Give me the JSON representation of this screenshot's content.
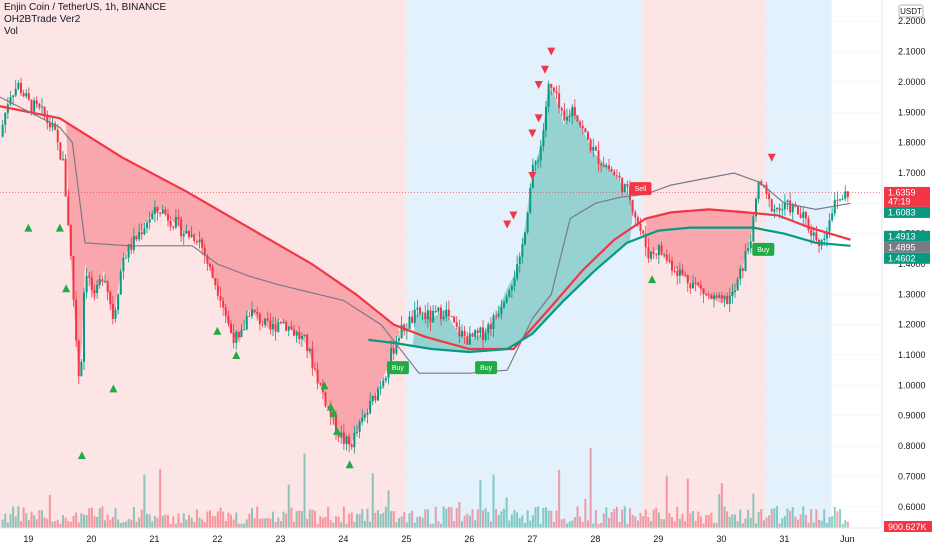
{
  "legend": {
    "symbol_line": "Enjin Coin / TetherUS, 1h, BINANCE",
    "indicator": "OH2BTrade Ver2",
    "volume": "Vol"
  },
  "currency": "USDT",
  "chart_data": {
    "type": "candlestick",
    "x_ticks": [
      "19",
      "20",
      "21",
      "22",
      "23",
      "24",
      "25",
      "26",
      "27",
      "28",
      "29",
      "30",
      "31",
      "Jun"
    ],
    "y_ticks": [
      2.2,
      2.1,
      2.0,
      1.9,
      1.8,
      1.7,
      1.6,
      1.5,
      1.4,
      1.3,
      1.2,
      1.1,
      1.0,
      0.9,
      0.8,
      0.7,
      0.6
    ],
    "y_tick_labels": [
      "2.2000",
      "2.1000",
      "2.0000",
      "1.9000",
      "1.8000",
      "1.7000",
      "1.6000",
      "1.5000",
      "1.4000",
      "1.3000",
      "1.2000",
      "1.1000",
      "1.0000",
      "0.9000",
      "0.8000",
      "0.7000",
      "0.6000"
    ],
    "ylim": [
      0.53,
      2.27
    ],
    "x_range_days": [
      18.55,
      32.55
    ],
    "price_path": [
      [
        18.55,
        1.82
      ],
      [
        18.7,
        1.96
      ],
      [
        18.85,
        1.99
      ],
      [
        19.0,
        1.93
      ],
      [
        19.2,
        1.9
      ],
      [
        19.4,
        1.84
      ],
      [
        19.55,
        1.73
      ],
      [
        19.65,
        1.5
      ],
      [
        19.75,
        1.18
      ],
      [
        19.82,
        0.98
      ],
      [
        19.9,
        1.4
      ],
      [
        20.05,
        1.28
      ],
      [
        20.2,
        1.38
      ],
      [
        20.35,
        1.22
      ],
      [
        20.5,
        1.42
      ],
      [
        20.7,
        1.48
      ],
      [
        20.9,
        1.55
      ],
      [
        21.1,
        1.58
      ],
      [
        21.3,
        1.54
      ],
      [
        21.5,
        1.5
      ],
      [
        21.7,
        1.49
      ],
      [
        21.9,
        1.37
      ],
      [
        22.05,
        1.3
      ],
      [
        22.2,
        1.18
      ],
      [
        22.35,
        1.14
      ],
      [
        22.5,
        1.25
      ],
      [
        22.7,
        1.21
      ],
      [
        22.85,
        1.18
      ],
      [
        23.0,
        1.22
      ],
      [
        23.2,
        1.18
      ],
      [
        23.4,
        1.14
      ],
      [
        23.55,
        1.05
      ],
      [
        23.7,
        0.96
      ],
      [
        23.85,
        0.87
      ],
      [
        24.0,
        0.82
      ],
      [
        24.1,
        0.8
      ],
      [
        24.25,
        0.86
      ],
      [
        24.4,
        0.92
      ],
      [
        24.55,
        0.99
      ],
      [
        24.7,
        1.06
      ],
      [
        24.85,
        1.16
      ],
      [
        25.0,
        1.2
      ],
      [
        25.2,
        1.24
      ],
      [
        25.4,
        1.22
      ],
      [
        25.6,
        1.25
      ],
      [
        25.8,
        1.18
      ],
      [
        26.0,
        1.15
      ],
      [
        26.2,
        1.17
      ],
      [
        26.4,
        1.22
      ],
      [
        26.6,
        1.32
      ],
      [
        26.8,
        1.4
      ],
      [
        26.9,
        1.55
      ],
      [
        27.0,
        1.7
      ],
      [
        27.15,
        1.8
      ],
      [
        27.25,
        1.98
      ],
      [
        27.35,
        1.96
      ],
      [
        27.5,
        1.86
      ],
      [
        27.65,
        1.92
      ],
      [
        27.8,
        1.84
      ],
      [
        28.0,
        1.76
      ],
      [
        28.2,
        1.72
      ],
      [
        28.4,
        1.67
      ],
      [
        28.55,
        1.62
      ],
      [
        28.7,
        1.52
      ],
      [
        28.85,
        1.43
      ],
      [
        29.0,
        1.45
      ],
      [
        29.2,
        1.4
      ],
      [
        29.4,
        1.36
      ],
      [
        29.6,
        1.33
      ],
      [
        29.8,
        1.29
      ],
      [
        30.0,
        1.27
      ],
      [
        30.2,
        1.3
      ],
      [
        30.35,
        1.4
      ],
      [
        30.5,
        1.52
      ],
      [
        30.6,
        1.68
      ],
      [
        30.75,
        1.6
      ],
      [
        30.9,
        1.58
      ],
      [
        31.1,
        1.59
      ],
      [
        31.3,
        1.55
      ],
      [
        31.45,
        1.5
      ],
      [
        31.6,
        1.47
      ],
      [
        31.75,
        1.58
      ],
      [
        31.9,
        1.62
      ],
      [
        32.05,
        1.64
      ]
    ],
    "overlays": [
      {
        "name": "",
        "color": "#f23645",
        "values": [
          [
            18.55,
            1.92
          ],
          [
            19.5,
            1.88
          ],
          [
            20.5,
            1.75
          ],
          [
            21.5,
            1.64
          ],
          [
            22.5,
            1.52
          ],
          [
            23.5,
            1.4
          ],
          [
            24.2,
            1.3
          ],
          [
            24.8,
            1.2
          ],
          [
            25.3,
            1.16
          ],
          [
            26.0,
            1.12
          ],
          [
            26.7,
            1.12
          ],
          [
            27.3,
            1.26
          ],
          [
            27.8,
            1.38
          ],
          [
            28.3,
            1.48
          ],
          [
            28.8,
            1.55
          ],
          [
            29.2,
            1.57
          ],
          [
            29.8,
            1.58
          ],
          [
            30.4,
            1.57
          ],
          [
            30.9,
            1.56
          ],
          [
            31.4,
            1.52
          ],
          [
            32.05,
            1.48
          ]
        ]
      },
      {
        "name": "",
        "color": "#089981",
        "values": [
          [
            24.4,
            1.15
          ],
          [
            24.8,
            1.14
          ],
          [
            25.4,
            1.12
          ],
          [
            26.0,
            1.11
          ],
          [
            26.6,
            1.12
          ],
          [
            27.0,
            1.17
          ],
          [
            27.5,
            1.28
          ],
          [
            28.0,
            1.38
          ],
          [
            28.5,
            1.47
          ],
          [
            29.0,
            1.51
          ],
          [
            29.5,
            1.52
          ],
          [
            30.0,
            1.52
          ],
          [
            30.5,
            1.52
          ],
          [
            31.0,
            1.5
          ],
          [
            31.5,
            1.47
          ],
          [
            32.05,
            1.46
          ]
        ]
      },
      {
        "name": "",
        "color": "#787b86",
        "values": [
          [
            18.55,
            1.95
          ],
          [
            19.5,
            1.85
          ],
          [
            19.7,
            1.8
          ],
          [
            19.9,
            1.47
          ],
          [
            20.6,
            1.46
          ],
          [
            21.2,
            1.46
          ],
          [
            21.6,
            1.46
          ],
          [
            22.0,
            1.4
          ],
          [
            22.5,
            1.36
          ],
          [
            23.0,
            1.33
          ],
          [
            23.6,
            1.3
          ],
          [
            24.0,
            1.28
          ],
          [
            24.6,
            1.2
          ],
          [
            25.2,
            1.04
          ],
          [
            26.0,
            1.04
          ],
          [
            26.6,
            1.05
          ],
          [
            27.0,
            1.22
          ],
          [
            27.3,
            1.3
          ],
          [
            27.6,
            1.55
          ],
          [
            28.0,
            1.6
          ],
          [
            28.4,
            1.62
          ],
          [
            28.8,
            1.63
          ],
          [
            29.2,
            1.66
          ],
          [
            29.7,
            1.68
          ],
          [
            30.2,
            1.7
          ],
          [
            30.6,
            1.67
          ],
          [
            31.0,
            1.6
          ],
          [
            31.5,
            1.58
          ],
          [
            32.05,
            1.6
          ]
        ]
      }
    ],
    "signals": [
      {
        "type": "buy",
        "label": "Buy",
        "x": 24.85,
        "y": 1.06
      },
      {
        "type": "buy",
        "label": "Buy",
        "x": 26.25,
        "y": 1.06
      },
      {
        "type": "sell",
        "label": "Sell",
        "x": 28.7,
        "y": 1.65
      },
      {
        "type": "buy",
        "label": "Buy",
        "x": 30.65,
        "y": 1.45
      }
    ],
    "up_arrows": [
      [
        19.0,
        1.52
      ],
      [
        19.5,
        1.52
      ],
      [
        19.6,
        1.32
      ],
      [
        19.85,
        0.77
      ],
      [
        20.35,
        0.99
      ],
      [
        22.0,
        1.18
      ],
      [
        22.3,
        1.1
      ],
      [
        23.7,
        1.0
      ],
      [
        23.8,
        0.93
      ],
      [
        23.85,
        0.91
      ],
      [
        23.9,
        0.85
      ],
      [
        24.1,
        0.74
      ],
      [
        28.9,
        1.35
      ]
    ],
    "down_arrows": [
      [
        26.6,
        1.53
      ],
      [
        26.7,
        1.56
      ],
      [
        27.0,
        1.69
      ],
      [
        27.0,
        1.83
      ],
      [
        27.1,
        1.88
      ],
      [
        27.1,
        1.99
      ],
      [
        27.2,
        2.04
      ],
      [
        27.3,
        2.1
      ],
      [
        30.8,
        1.75
      ]
    ],
    "price_labels": [
      {
        "text": "1.6359",
        "sub": "47:19",
        "value": 1.6359,
        "bg": "#f23645",
        "fg": "#ffffff"
      },
      {
        "text": "1.6083",
        "value": 1.6083,
        "bg": "#089981",
        "fg": "#ffffff"
      },
      {
        "text": "1.4913",
        "value": 1.4913,
        "bg": "#089981",
        "fg": "#ffffff"
      },
      {
        "text": "1.4895",
        "value": 1.4895,
        "bg": "#787b86",
        "fg": "#ffffff"
      },
      {
        "text": "1.4602",
        "value": 1.4602,
        "bg": "#089981",
        "fg": "#ffffff"
      }
    ],
    "volume_label": "900.627K",
    "last_price": 1.6359,
    "background_regions": [
      {
        "from": 18.55,
        "to": 25.0,
        "color": "#fde4e5"
      },
      {
        "from": 25.0,
        "to": 28.75,
        "color": "#e2f1fc"
      },
      {
        "from": 28.75,
        "to": 30.7,
        "color": "#fde4e5"
      },
      {
        "from": 30.7,
        "to": 31.75,
        "color": "#e2f1fc"
      }
    ]
  },
  "colors": {
    "up": "#089981",
    "down": "#f23645",
    "ma_red": "#f23645",
    "ma_green": "#089981",
    "gray_line": "#787b86"
  }
}
